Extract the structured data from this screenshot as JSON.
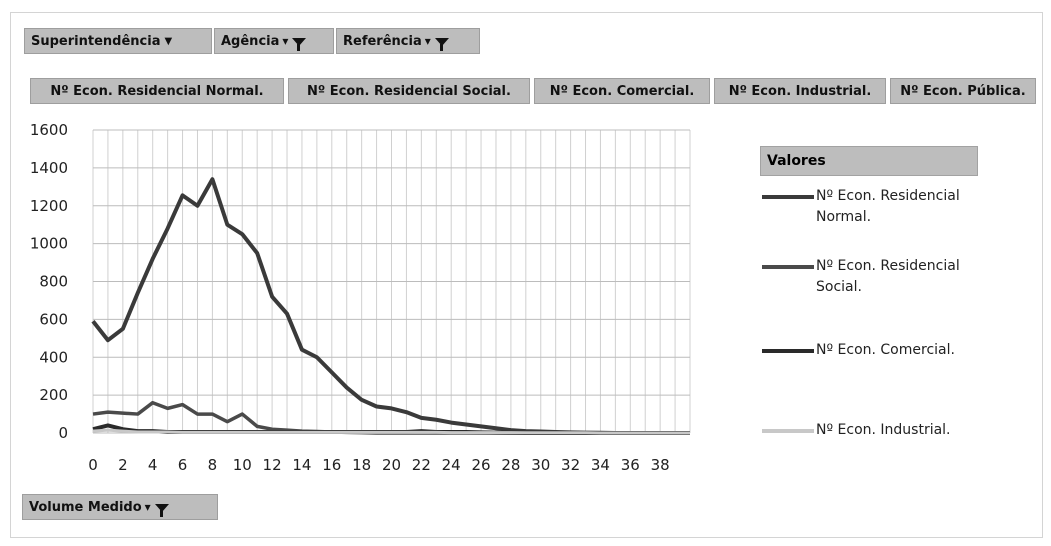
{
  "filters": {
    "superintendencia": "Superintendência",
    "agencia": "Agência",
    "referencia": "Referência",
    "volume": "Volume Medido"
  },
  "series_buttons": [
    "Nº Econ. Residencial Normal.",
    "Nº Econ. Residencial Social.",
    "Nº Econ. Comercial.",
    "Nº Econ. Industrial.",
    "Nº Econ. Pública."
  ],
  "legend": {
    "title": "Valores",
    "items": [
      {
        "label": "Nº Econ. Residencial Normal.",
        "color": "#3a3a3a"
      },
      {
        "label": "Nº Econ. Residencial Social.",
        "color": "#4a4a4a"
      },
      {
        "label": "Nº Econ. Comercial.",
        "color": "#2a2a2a"
      },
      {
        "label": "Nº Econ. Industrial.",
        "color": "#c8c8c8"
      }
    ]
  },
  "chart_data": {
    "type": "line",
    "x": [
      0,
      1,
      2,
      3,
      4,
      5,
      6,
      7,
      8,
      9,
      10,
      11,
      12,
      13,
      14,
      15,
      16,
      17,
      18,
      19,
      20,
      21,
      22,
      23,
      24,
      25,
      26,
      27,
      28,
      29,
      30,
      31,
      32,
      33,
      34,
      35,
      36,
      37,
      38,
      39,
      40
    ],
    "ylim": [
      0,
      1600
    ],
    "yticks": [
      0,
      200,
      400,
      600,
      800,
      1000,
      1200,
      1400,
      1600
    ],
    "xticks": [
      0,
      2,
      4,
      6,
      8,
      10,
      12,
      14,
      16,
      18,
      20,
      22,
      24,
      26,
      28,
      30,
      32,
      34,
      36,
      38
    ],
    "grid": true,
    "legend_position": "right",
    "series": [
      {
        "name": "Nº Econ. Residencial Normal.",
        "values": [
          590,
          490,
          550,
          740,
          920,
          1080,
          1255,
          1200,
          1340,
          1100,
          1050,
          950,
          720,
          630,
          440,
          400,
          320,
          240,
          175,
          140,
          130,
          110,
          80,
          70,
          55,
          45,
          35,
          25,
          15,
          10,
          8,
          5,
          3,
          2,
          1,
          0,
          0,
          0,
          0,
          0,
          0
        ]
      },
      {
        "name": "Nº Econ. Residencial Social.",
        "values": [
          100,
          110,
          105,
          100,
          160,
          130,
          150,
          100,
          100,
          60,
          100,
          35,
          20,
          15,
          10,
          8,
          5,
          3,
          2,
          0,
          0,
          0,
          0,
          0,
          0,
          0,
          0,
          0,
          0,
          0,
          0,
          0,
          0,
          0,
          0,
          0,
          0,
          0,
          0,
          0,
          0
        ]
      },
      {
        "name": "Nº Econ. Comercial.",
        "values": [
          20,
          40,
          20,
          10,
          10,
          5,
          5,
          5,
          5,
          5,
          5,
          5,
          5,
          5,
          5,
          5,
          5,
          5,
          5,
          5,
          5,
          5,
          10,
          5,
          5,
          5,
          3,
          2,
          1,
          0,
          0,
          0,
          0,
          0,
          0,
          0,
          0,
          0,
          0,
          0,
          0
        ]
      },
      {
        "name": "Nº Econ. Industrial.",
        "values": [
          10,
          15,
          10,
          5,
          5,
          5,
          3,
          3,
          3,
          3,
          3,
          3,
          3,
          3,
          3,
          3,
          3,
          3,
          3,
          3,
          3,
          3,
          3,
          3,
          2,
          2,
          2,
          2,
          2,
          1,
          1,
          1,
          1,
          1,
          0,
          0,
          0,
          0,
          0,
          0,
          0
        ]
      }
    ]
  }
}
